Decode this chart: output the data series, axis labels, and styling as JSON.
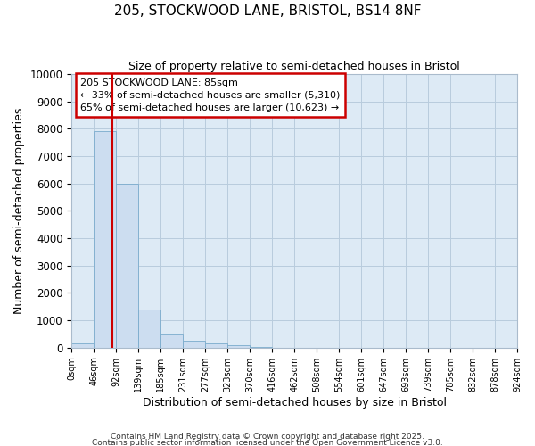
{
  "title_line1": "205, STOCKWOOD LANE, BRISTOL, BS14 8NF",
  "title_line2": "Size of property relative to semi-detached houses in Bristol",
  "xlabel": "Distribution of semi-detached houses by size in Bristol",
  "ylabel": "Number of semi-detached properties",
  "bar_edges": [
    0,
    46,
    92,
    139,
    185,
    231,
    277,
    323,
    370,
    416,
    462,
    508,
    554,
    601,
    647,
    693,
    739,
    785,
    832,
    878,
    924
  ],
  "bar_heights": [
    150,
    7900,
    6000,
    1400,
    500,
    250,
    150,
    80,
    10,
    0,
    0,
    0,
    0,
    0,
    0,
    0,
    0,
    0,
    0,
    0
  ],
  "bar_color": "#ccddf0",
  "bar_edgecolor": "#7aabcc",
  "property_size": 85,
  "annotation_title": "205 STOCKWOOD LANE: 85sqm",
  "annotation_line2": "← 33% of semi-detached houses are smaller (5,310)",
  "annotation_line3": "65% of semi-detached houses are larger (10,623) →",
  "vline_color": "#cc0000",
  "annotation_box_edgecolor": "#cc0000",
  "annotation_box_facecolor": "#ffffff",
  "ylim": [
    0,
    10000
  ],
  "yticks": [
    0,
    1000,
    2000,
    3000,
    4000,
    5000,
    6000,
    7000,
    8000,
    9000,
    10000
  ],
  "grid_color": "#b8ccdd",
  "fig_background": "#ffffff",
  "plot_background": "#ddeaf5",
  "footnote_line1": "Contains HM Land Registry data © Crown copyright and database right 2025.",
  "footnote_line2": "Contains public sector information licensed under the Open Government Licence v3.0."
}
